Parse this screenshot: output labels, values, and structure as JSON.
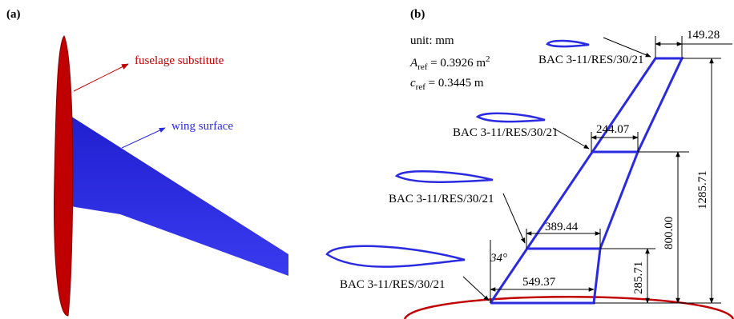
{
  "panel_a": {
    "label": "(a)",
    "annotations": {
      "fuselage": "fuselage substitute",
      "wing": "wing surface"
    }
  },
  "panel_b": {
    "label": "(b)",
    "unit": "unit: mm",
    "area": {
      "symbol": "A",
      "subscript": "ref",
      "value": " = 0.3926 m",
      "superscript": "2"
    },
    "chord": {
      "symbol": "c",
      "subscript": "ref",
      "value": " = 0.3445 m"
    },
    "airfoil_labels": [
      "BAC 3-11/RES/30/21",
      "BAC 3-11/RES/30/21",
      "BAC 3-11/RES/30/21",
      "BAC 3-11/RES/30/21"
    ],
    "dimensions": {
      "tip_chord": "149.28",
      "chord_3": "244.07",
      "chord_2": "389.44",
      "root_chord": "549.37",
      "span_1": "285.71",
      "span_2": "800.00",
      "span_total": "1285.71"
    },
    "sweep_angle": "34°"
  }
}
